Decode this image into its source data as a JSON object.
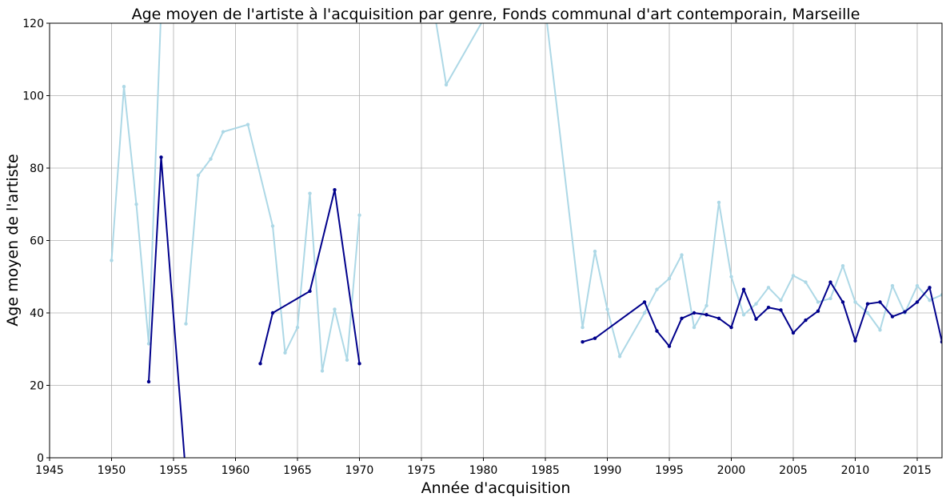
{
  "chart_data": {
    "type": "line",
    "title": "Age moyen de l'artiste à l'acquisition par genre, Fonds communal d'art contemporain, Marseille",
    "xlabel": "Année d'acquisition",
    "ylabel": "Age moyen de l'artiste",
    "xlim": [
      1945,
      2017
    ],
    "ylim": [
      0,
      120
    ],
    "xticks": [
      1945,
      1950,
      1955,
      1960,
      1965,
      1970,
      1975,
      1980,
      1985,
      1990,
      1995,
      2000,
      2005,
      2010,
      2015
    ],
    "yticks": [
      0,
      20,
      40,
      60,
      80,
      100,
      120
    ],
    "grid": true,
    "series": [
      {
        "color": "#add8e6",
        "segments": [
          [
            [
              1950,
              54.5
            ],
            [
              1951,
              102.5
            ],
            [
              1952,
              70
            ],
            [
              1953,
              31.5
            ],
            [
              1954,
              124
            ]
          ],
          [
            [
              1956,
              37
            ],
            [
              1957,
              78
            ],
            [
              1958,
              82.5
            ],
            [
              1959,
              90
            ],
            [
              1961,
              92
            ],
            [
              1963,
              64
            ],
            [
              1964,
              29
            ],
            [
              1965,
              36
            ],
            [
              1966,
              73
            ],
            [
              1967,
              24
            ],
            [
              1968,
              41
            ],
            [
              1969,
              27
            ],
            [
              1970,
              67
            ]
          ],
          [
            [
              1976,
              124
            ],
            [
              1977,
              103
            ],
            [
              1980,
              121
            ],
            [
              1981,
              124
            ]
          ],
          [
            [
              1985,
              124
            ],
            [
              1988,
              36
            ],
            [
              1989,
              57
            ],
            [
              1990,
              41
            ],
            [
              1991,
              28
            ],
            [
              1993,
              40
            ],
            [
              1994,
              46.5
            ],
            [
              1995,
              49.5
            ],
            [
              1996,
              56
            ],
            [
              1997,
              36
            ],
            [
              1998,
              42
            ],
            [
              1999,
              70.5
            ],
            [
              2000,
              50
            ],
            [
              2001,
              39.5
            ],
            [
              2002,
              42.5
            ],
            [
              2003,
              47
            ],
            [
              2004,
              43.5
            ],
            [
              2005,
              50.3
            ],
            [
              2006,
              48.5
            ],
            [
              2007,
              43
            ],
            [
              2008,
              44
            ],
            [
              2009,
              53
            ],
            [
              2010,
              43
            ],
            [
              2011,
              40
            ],
            [
              2012,
              35.3
            ],
            [
              2013,
              47.5
            ],
            [
              2014,
              40
            ],
            [
              2015,
              47.5
            ],
            [
              2016,
              43.5
            ],
            [
              2017,
              45
            ]
          ]
        ]
      },
      {
        "color": "#00008b",
        "segments": [
          [
            [
              1953,
              21
            ],
            [
              1954,
              83
            ],
            [
              1956,
              -5
            ]
          ],
          [
            [
              1962,
              26
            ],
            [
              1963,
              40
            ],
            [
              1966,
              46
            ],
            [
              1968,
              74
            ],
            [
              1970,
              26
            ]
          ],
          [
            [
              1988,
              32
            ],
            [
              1989,
              33
            ],
            [
              1993,
              43
            ],
            [
              1994,
              35
            ],
            [
              1995,
              30.8
            ],
            [
              1996,
              38.5
            ],
            [
              1997,
              40
            ],
            [
              1998,
              39.5
            ],
            [
              1999,
              38.5
            ],
            [
              2000,
              36
            ],
            [
              2001,
              46.5
            ],
            [
              2002,
              38.3
            ],
            [
              2003,
              41.5
            ],
            [
              2004,
              40.8
            ],
            [
              2005,
              34.5
            ],
            [
              2006,
              38
            ],
            [
              2007,
              40.5
            ],
            [
              2008,
              48.5
            ],
            [
              2009,
              43
            ],
            [
              2010,
              32.3
            ],
            [
              2011,
              42.5
            ],
            [
              2012,
              43
            ],
            [
              2013,
              39
            ],
            [
              2014,
              40.3
            ],
            [
              2015,
              43
            ],
            [
              2016,
              47
            ],
            [
              2017,
              32
            ]
          ]
        ]
      }
    ]
  }
}
